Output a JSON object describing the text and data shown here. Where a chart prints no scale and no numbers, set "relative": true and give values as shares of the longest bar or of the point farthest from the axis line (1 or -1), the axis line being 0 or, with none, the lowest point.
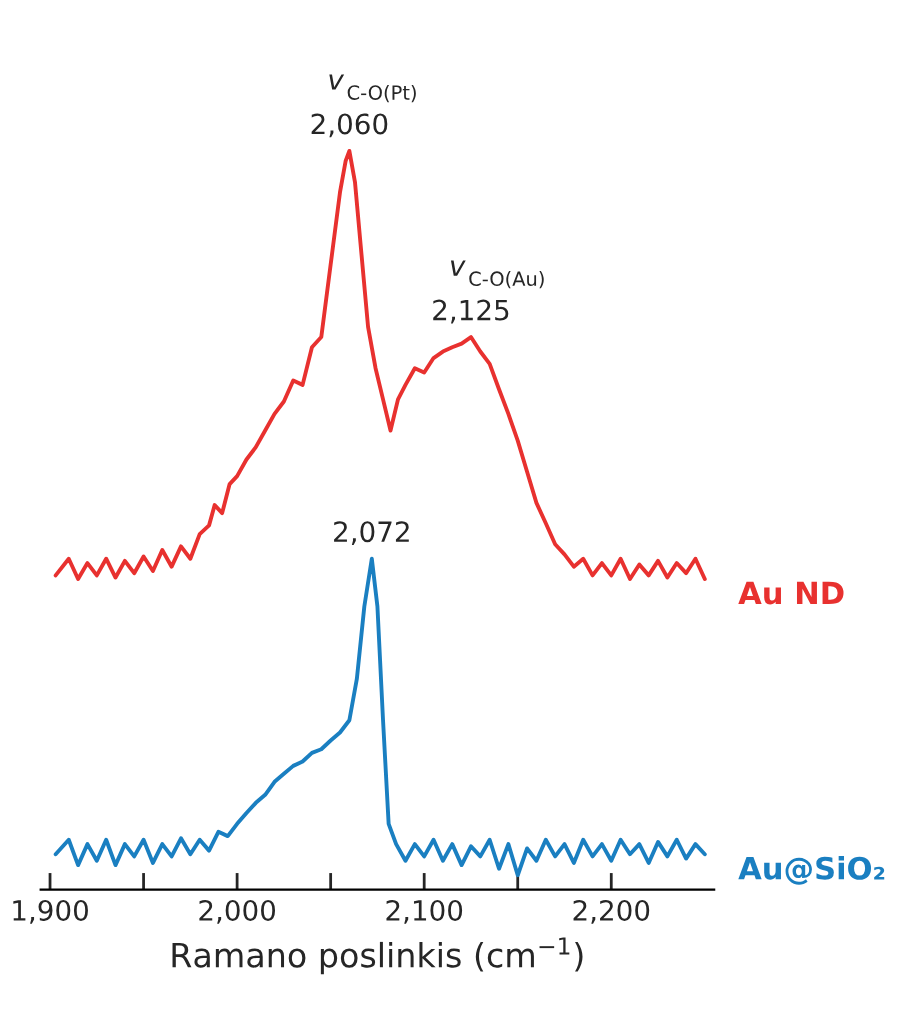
{
  "chart_data": {
    "type": "line",
    "relative": true,
    "xlabel": "Ramano poslinkis (cm$^{−1}$)",
    "xlim": [
      1895,
      2255
    ],
    "xticks": [
      {
        "value": 1900,
        "label": "1,900"
      },
      {
        "value": 1950,
        "label": null
      },
      {
        "value": 2000,
        "label": "2,000"
      },
      {
        "value": 2050,
        "label": null
      },
      {
        "value": 2100,
        "label": "2,100"
      },
      {
        "value": 2150,
        "label": null
      },
      {
        "value": 2200,
        "label": "2,200"
      }
    ],
    "grid": false,
    "legend": false,
    "marker": "none",
    "line_style": "solid",
    "series": [
      {
        "name": "Au ND",
        "color": "#e8312f",
        "x": [
          1903,
          1910,
          1915,
          1920,
          1925,
          1930,
          1935,
          1940,
          1945,
          1950,
          1955,
          1960,
          1965,
          1970,
          1975,
          1980,
          1985,
          1988,
          1992,
          1996,
          2000,
          2005,
          2010,
          2015,
          2020,
          2025,
          2030,
          2035,
          2040,
          2045,
          2050,
          2055,
          2058,
          2060,
          2063,
          2066,
          2070,
          2074,
          2078,
          2082,
          2086,
          2090,
          2095,
          2100,
          2105,
          2110,
          2115,
          2120,
          2125,
          2130,
          2135,
          2140,
          2145,
          2150,
          2155,
          2160,
          2165,
          2170,
          2175,
          2180,
          2185,
          2190,
          2195,
          2200,
          2205,
          2210,
          2215,
          2220,
          2225,
          2230,
          2235,
          2240,
          2245,
          2250
        ],
        "values": [
          0.414,
          0.437,
          0.409,
          0.431,
          0.414,
          0.437,
          0.411,
          0.434,
          0.417,
          0.44,
          0.42,
          0.449,
          0.426,
          0.454,
          0.437,
          0.471,
          0.483,
          0.511,
          0.5,
          0.54,
          0.551,
          0.574,
          0.591,
          0.614,
          0.637,
          0.654,
          0.683,
          0.677,
          0.729,
          0.743,
          0.843,
          0.943,
          0.986,
          1.0,
          0.957,
          0.871,
          0.757,
          0.7,
          0.657,
          0.614,
          0.657,
          0.677,
          0.7,
          0.694,
          0.714,
          0.723,
          0.729,
          0.734,
          0.743,
          0.723,
          0.706,
          0.671,
          0.637,
          0.6,
          0.557,
          0.514,
          0.486,
          0.457,
          0.443,
          0.426,
          0.437,
          0.414,
          0.431,
          0.414,
          0.437,
          0.409,
          0.429,
          0.414,
          0.434,
          0.411,
          0.431,
          0.417,
          0.437,
          0.409
        ]
      },
      {
        "name": "Au@SiO₂",
        "color": "#1a7fc1",
        "x": [
          1903,
          1910,
          1915,
          1920,
          1925,
          1930,
          1935,
          1940,
          1945,
          1950,
          1955,
          1960,
          1965,
          1970,
          1975,
          1980,
          1985,
          1990,
          1995,
          2000,
          2005,
          2010,
          2015,
          2020,
          2025,
          2030,
          2035,
          2040,
          2045,
          2050,
          2055,
          2060,
          2064,
          2068,
          2072,
          2075,
          2078,
          2081,
          2085,
          2090,
          2095,
          2100,
          2105,
          2110,
          2115,
          2120,
          2125,
          2130,
          2135,
          2140,
          2145,
          2150,
          2155,
          2160,
          2165,
          2170,
          2175,
          2180,
          2185,
          2190,
          2195,
          2200,
          2205,
          2210,
          2215,
          2220,
          2225,
          2230,
          2235,
          2240,
          2245,
          2250
        ],
        "values": [
          0.029,
          0.049,
          0.014,
          0.043,
          0.02,
          0.049,
          0.014,
          0.043,
          0.026,
          0.049,
          0.017,
          0.043,
          0.026,
          0.051,
          0.029,
          0.049,
          0.034,
          0.06,
          0.054,
          0.071,
          0.086,
          0.1,
          0.111,
          0.129,
          0.14,
          0.151,
          0.157,
          0.169,
          0.174,
          0.186,
          0.197,
          0.214,
          0.271,
          0.371,
          0.437,
          0.371,
          0.214,
          0.071,
          0.043,
          0.02,
          0.043,
          0.026,
          0.049,
          0.02,
          0.043,
          0.014,
          0.04,
          0.026,
          0.049,
          0.009,
          0.043,
          0.0,
          0.037,
          0.02,
          0.049,
          0.026,
          0.043,
          0.017,
          0.049,
          0.026,
          0.043,
          0.02,
          0.049,
          0.029,
          0.043,
          0.017,
          0.046,
          0.026,
          0.049,
          0.023,
          0.043,
          0.029
        ]
      }
    ],
    "annotations": [
      {
        "text": "2,060",
        "x": 2060,
        "y": 1.0
      },
      {
        "text": "v$_{C-O(Pt)}$",
        "x": 2060,
        "y": 1.0
      },
      {
        "text": "2,125",
        "x": 2125,
        "y": 0.743
      },
      {
        "text": "v$_{C-O(Au)}$",
        "x": 2125,
        "y": 0.743
      },
      {
        "text": "2,072",
        "x": 2072,
        "y": 0.437
      }
    ]
  }
}
